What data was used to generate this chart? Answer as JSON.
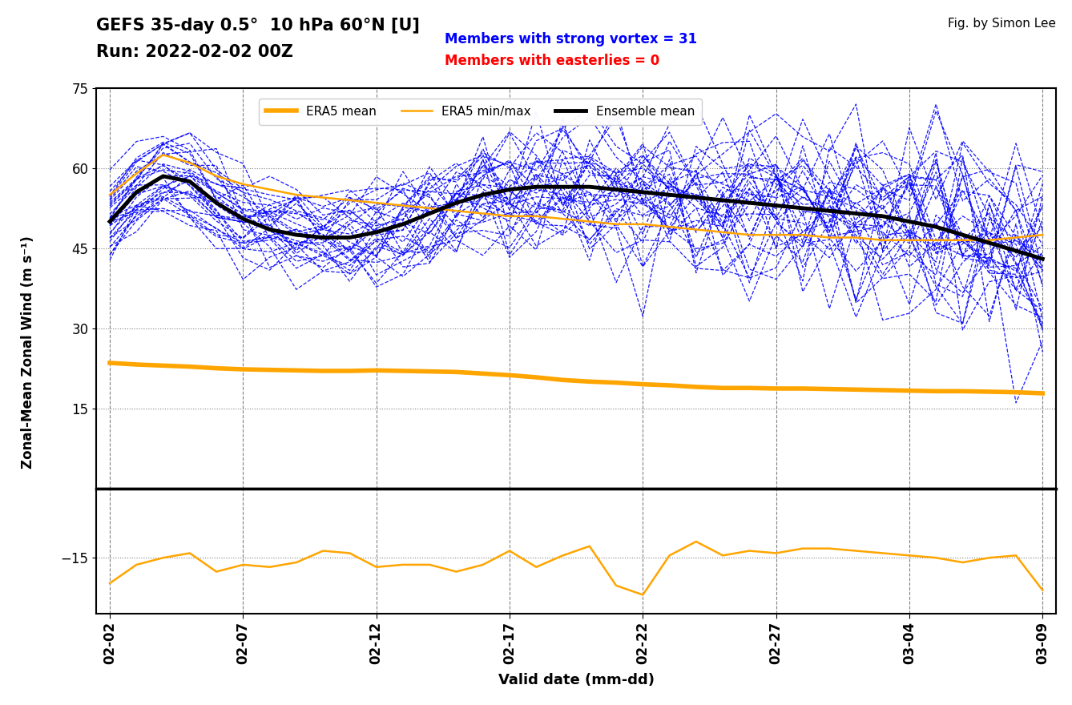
{
  "title_line1": "GEFS 35-day 0.5°  10 hPa 60°N [U]",
  "title_line2": "Run: 2022-02-02 00Z",
  "members_strong_label": "Members with strong vortex = 31",
  "members_east_label": "Members with easterlies = 0",
  "fig_credit": "Fig. by Simon Lee",
  "ylabel": "Zonal-Mean Zonal Wind (m s⁻¹)",
  "xlabel": "Valid date (mm-dd)",
  "ylim_upper": [
    0,
    75
  ],
  "ylim_lower": [
    -27,
    0
  ],
  "yticks_upper": [
    15,
    30,
    45,
    60,
    75
  ],
  "yticks_lower": [
    -15
  ],
  "n_days": 36,
  "xtick_days": [
    0,
    5,
    10,
    15,
    20,
    25,
    30,
    35
  ],
  "xtick_labels": [
    "02-02",
    "02-07",
    "02-12",
    "02-17",
    "02-22",
    "02-27",
    "03-04",
    "03-09"
  ],
  "era5_mean_color": "#FFA500",
  "era5_minmax_color": "#FFA500",
  "ensemble_member_color": "#0000FF",
  "ensemble_mean_color": "#000000",
  "background_color": "#ffffff",
  "n_members": 31,
  "era5_mean_upper": [
    23.5,
    23.2,
    23.0,
    22.8,
    22.5,
    22.3,
    22.2,
    22.1,
    22.0,
    22.0,
    22.1,
    22.0,
    21.9,
    21.8,
    21.5,
    21.2,
    20.8,
    20.3,
    20.0,
    19.8,
    19.5,
    19.3,
    19.0,
    18.8,
    18.8,
    18.7,
    18.7,
    18.6,
    18.5,
    18.4,
    18.3,
    18.2,
    18.2,
    18.1,
    18.0,
    17.8
  ],
  "era5_minmax_upper": [
    55.0,
    59.0,
    62.5,
    61.0,
    58.5,
    57.0,
    56.0,
    55.0,
    54.5,
    54.0,
    53.5,
    53.0,
    52.5,
    52.0,
    51.5,
    51.0,
    51.0,
    50.5,
    50.0,
    49.5,
    49.5,
    49.0,
    48.5,
    48.0,
    47.5,
    47.5,
    47.5,
    47.0,
    47.0,
    46.5,
    46.5,
    46.5,
    46.5,
    46.5,
    47.0,
    47.5
  ],
  "era5_lower": [
    -20.5,
    -16.5,
    -15.0,
    -14.0,
    -18.0,
    -16.5,
    -17.0,
    -16.0,
    -13.5,
    -14.0,
    -17.0,
    -16.5,
    -16.5,
    -18.0,
    -16.5,
    -13.5,
    -17.0,
    -14.5,
    -12.5,
    -21.0,
    -23.0,
    -14.5,
    -11.5,
    -14.5,
    -13.5,
    -14.0,
    -13.0,
    -13.0,
    -13.5,
    -14.0,
    -14.5,
    -15.0,
    -16.0,
    -15.0,
    -14.5,
    -22.0
  ],
  "ensemble_mean": [
    50.0,
    55.5,
    58.5,
    57.5,
    53.5,
    50.5,
    48.5,
    47.5,
    47.0,
    47.0,
    48.0,
    49.5,
    51.5,
    53.5,
    55.0,
    56.0,
    56.5,
    56.5,
    56.5,
    56.0,
    55.5,
    55.0,
    54.5,
    54.0,
    53.5,
    53.0,
    52.5,
    52.0,
    51.5,
    51.0,
    50.0,
    49.0,
    47.5,
    46.0,
    44.5,
    43.0
  ]
}
